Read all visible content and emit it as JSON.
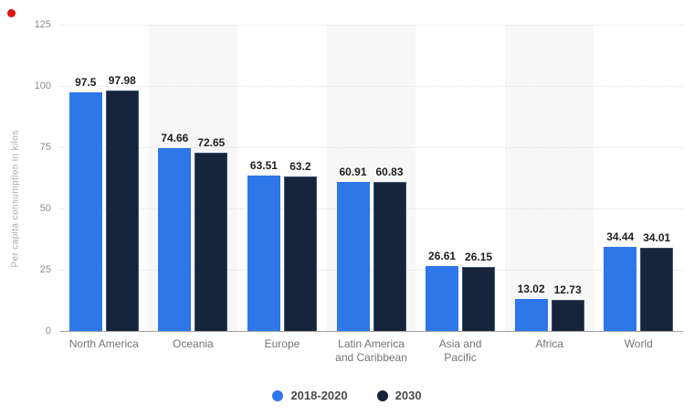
{
  "indicator": {
    "color": "#dc1414"
  },
  "chart_data": {
    "type": "bar",
    "title": "",
    "ylabel": "Per capita consumption in kilos",
    "xlabel": "",
    "ylim": [
      0,
      125
    ],
    "yticks": [
      0,
      25,
      50,
      75,
      100,
      125
    ],
    "grid": "horizontal-dotted",
    "legend_position": "bottom",
    "plot_band_color": "#f7f7f7",
    "banded_category_indexes": [
      1,
      3,
      5
    ],
    "categories": [
      "North America",
      "Oceania",
      "Europe",
      "Latin America and Caribbean",
      "Asia and Pacific",
      "Africa",
      "World"
    ],
    "category_label_lines": [
      [
        "North America"
      ],
      [
        "Oceania"
      ],
      [
        "Europe"
      ],
      [
        "Latin America",
        "and Caribbean"
      ],
      [
        "Asia and",
        "Pacific"
      ],
      [
        "Africa"
      ],
      [
        "World"
      ]
    ],
    "series": [
      {
        "name": "2018-2020",
        "color": "#2d77e8",
        "values": [
          97.5,
          74.66,
          63.51,
          60.91,
          26.61,
          13.02,
          34.44
        ],
        "value_labels": [
          "97.5",
          "74.66",
          "63.51",
          "60.91",
          "26.61",
          "13.02",
          "34.44"
        ]
      },
      {
        "name": "2030",
        "color": "#16243c",
        "values": [
          97.98,
          72.65,
          63.2,
          60.83,
          26.15,
          12.73,
          34.01
        ],
        "value_labels": [
          "97.98",
          "72.65",
          "63.2",
          "60.83",
          "26.15",
          "12.73",
          "34.01"
        ]
      }
    ]
  }
}
